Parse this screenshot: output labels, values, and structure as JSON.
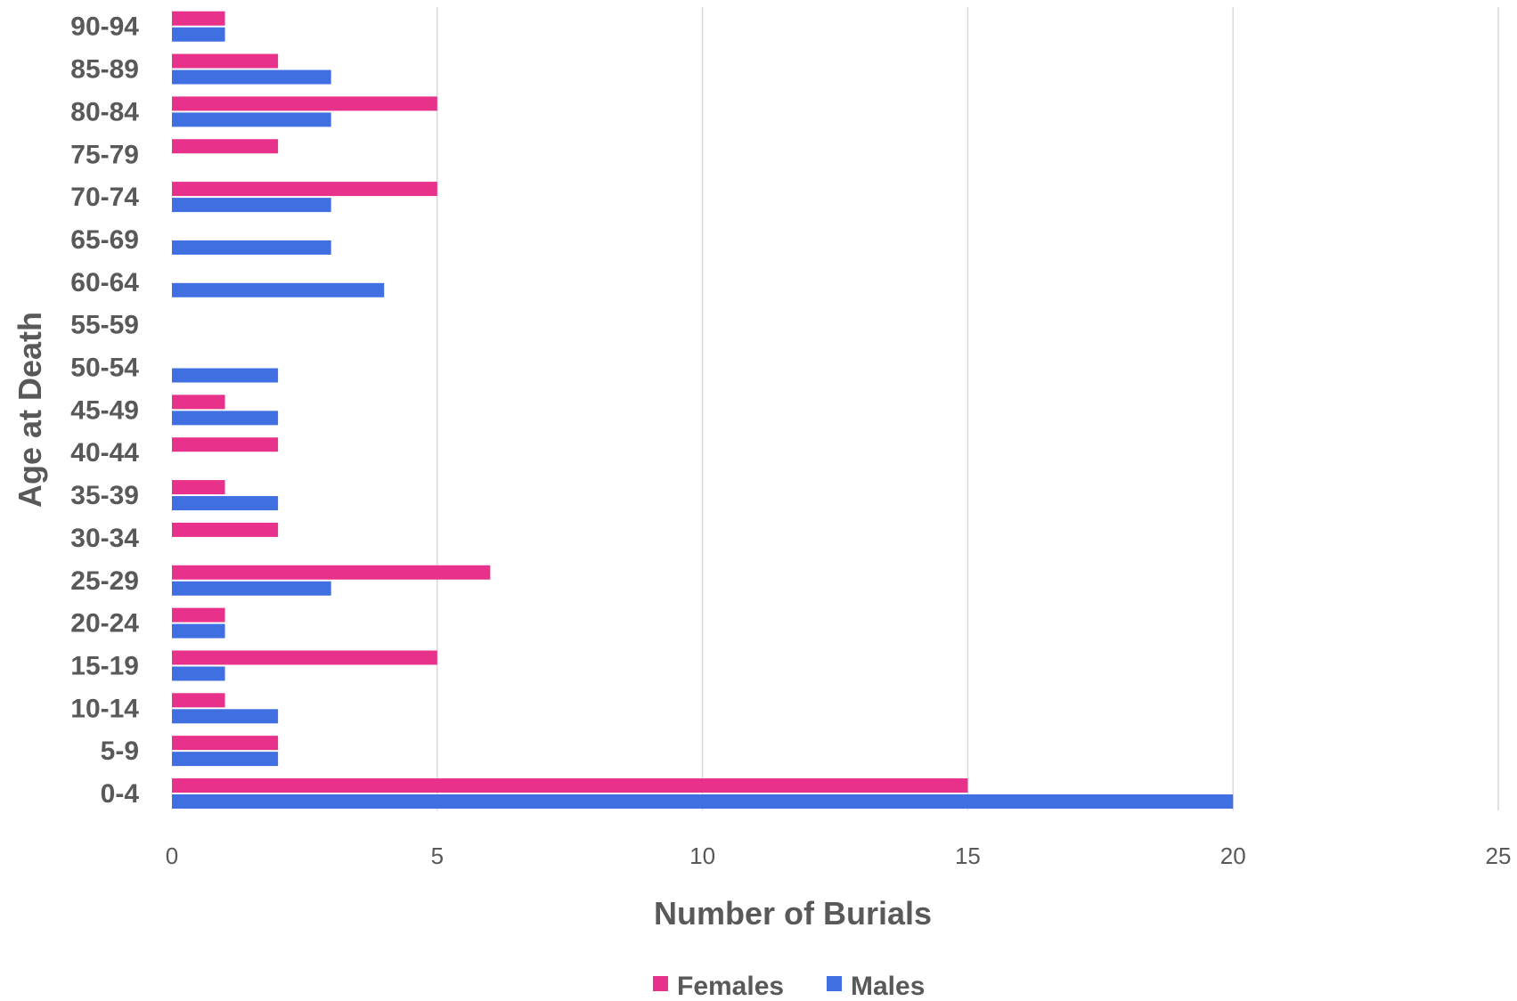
{
  "chart_data": {
    "type": "bar",
    "orientation": "horizontal",
    "title": "",
    "xlabel": "Number of Burials",
    "ylabel": "Age at Death",
    "xlim": [
      0,
      25
    ],
    "x_ticks": [
      "0",
      "5",
      "10",
      "15",
      "20",
      "25"
    ],
    "grid": true,
    "legend_position": "bottom",
    "categories": [
      "0-4",
      "5-9",
      "10-14",
      "15-19",
      "20-24",
      "25-29",
      "30-34",
      "35-39",
      "40-44",
      "45-49",
      "50-54",
      "55-59",
      "60-64",
      "65-69",
      "70-74",
      "75-79",
      "80-84",
      "85-89",
      "90-94"
    ],
    "series": [
      {
        "name": "Females",
        "color": "#e8318a",
        "values": [
          15,
          2,
          1,
          5,
          1,
          6,
          2,
          1,
          2,
          1,
          0,
          0,
          0,
          0,
          5,
          2,
          5,
          2,
          1
        ]
      },
      {
        "name": "Males",
        "color": "#3f6fe0",
        "values": [
          20,
          2,
          2,
          1,
          1,
          3,
          0,
          2,
          0,
          2,
          2,
          0,
          4,
          3,
          3,
          0,
          3,
          3,
          1
        ]
      }
    ]
  }
}
